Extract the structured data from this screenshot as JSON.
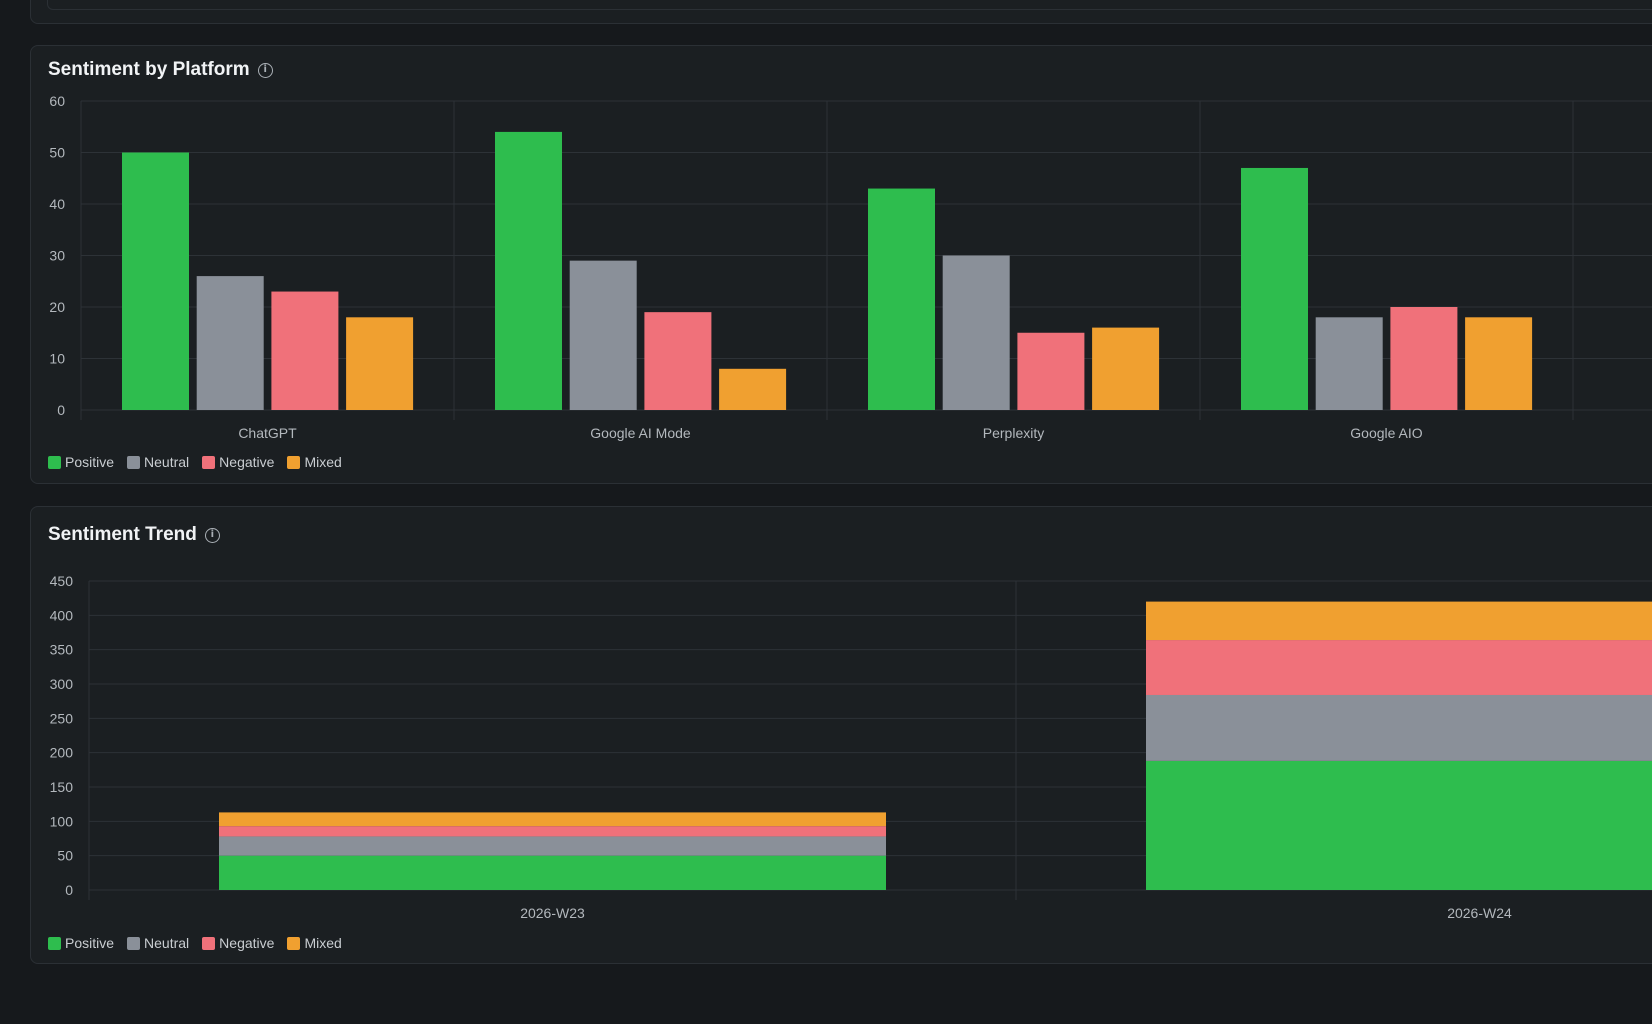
{
  "colors": {
    "positive": "#2ebd4e",
    "neutral": "#8a9099",
    "negative": "#f0717a",
    "mixed": "#f0a030",
    "grid": "#2d3237",
    "axis_text": "#b3b8bd"
  },
  "cards": {
    "platform": {
      "title": "Sentiment by Platform"
    },
    "trend": {
      "title": "Sentiment Trend"
    }
  },
  "legend": [
    "Positive",
    "Neutral",
    "Negative",
    "Mixed"
  ],
  "chart_data": [
    {
      "type": "bar",
      "title": "Sentiment by Platform",
      "categories": [
        "ChatGPT",
        "Google AI Mode",
        "Perplexity",
        "Google AIO"
      ],
      "series": [
        {
          "name": "Positive",
          "values": [
            50,
            54,
            43,
            47
          ]
        },
        {
          "name": "Neutral",
          "values": [
            26,
            29,
            30,
            18
          ]
        },
        {
          "name": "Negative",
          "values": [
            23,
            19,
            15,
            20
          ]
        },
        {
          "name": "Mixed",
          "values": [
            18,
            8,
            16,
            18
          ]
        }
      ],
      "yticks": [
        0,
        10,
        20,
        30,
        40,
        50,
        60
      ],
      "ylim": [
        0,
        60
      ],
      "grid": true,
      "legend": "bottom-left"
    },
    {
      "type": "bar",
      "stacked": true,
      "title": "Sentiment Trend",
      "categories": [
        "2026-W23",
        "2026-W24"
      ],
      "series": [
        {
          "name": "Positive",
          "values": [
            50,
            188
          ]
        },
        {
          "name": "Neutral",
          "values": [
            28,
            96
          ]
        },
        {
          "name": "Negative",
          "values": [
            15,
            80
          ]
        },
        {
          "name": "Mixed",
          "values": [
            20,
            56
          ]
        }
      ],
      "yticks": [
        0,
        50,
        100,
        150,
        200,
        250,
        300,
        350,
        400,
        450
      ],
      "ylim": [
        0,
        450
      ],
      "grid": true,
      "legend": "bottom-left"
    }
  ]
}
